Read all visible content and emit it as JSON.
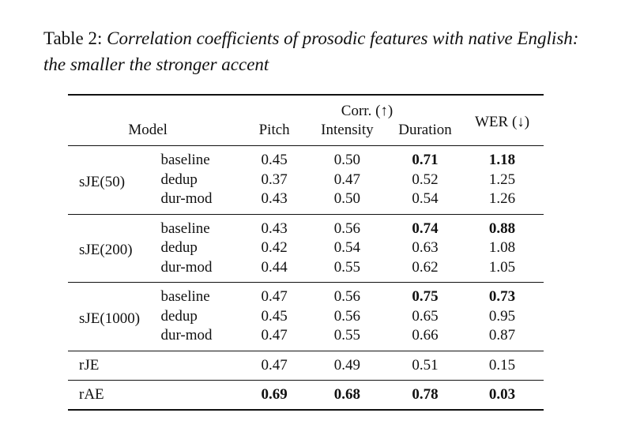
{
  "caption": {
    "label": "Table 2:",
    "text": "Correlation coefficients of prosodic features with native English: the smaller the stronger accent"
  },
  "header": {
    "model": "Model",
    "corr_group": "Corr. (↑)",
    "pitch": "Pitch",
    "intensity": "Intensity",
    "duration": "Duration",
    "wer": "WER (↓)"
  },
  "groups": [
    {
      "model": "sJE(50)",
      "rows": [
        {
          "variant": "baseline",
          "pitch": "0.45",
          "intensity": "0.50",
          "duration": "0.71",
          "wer": "1.18",
          "bold": [
            "duration",
            "wer"
          ]
        },
        {
          "variant": "dedup",
          "pitch": "0.37",
          "intensity": "0.47",
          "duration": "0.52",
          "wer": "1.25",
          "bold": []
        },
        {
          "variant": "dur-mod",
          "pitch": "0.43",
          "intensity": "0.50",
          "duration": "0.54",
          "wer": "1.26",
          "bold": []
        }
      ]
    },
    {
      "model": "sJE(200)",
      "rows": [
        {
          "variant": "baseline",
          "pitch": "0.43",
          "intensity": "0.56",
          "duration": "0.74",
          "wer": "0.88",
          "bold": [
            "duration",
            "wer"
          ]
        },
        {
          "variant": "dedup",
          "pitch": "0.42",
          "intensity": "0.54",
          "duration": "0.63",
          "wer": "1.08",
          "bold": []
        },
        {
          "variant": "dur-mod",
          "pitch": "0.44",
          "intensity": "0.55",
          "duration": "0.62",
          "wer": "1.05",
          "bold": []
        }
      ]
    },
    {
      "model": "sJE(1000)",
      "rows": [
        {
          "variant": "baseline",
          "pitch": "0.47",
          "intensity": "0.56",
          "duration": "0.75",
          "wer": "0.73",
          "bold": [
            "duration",
            "wer"
          ]
        },
        {
          "variant": "dedup",
          "pitch": "0.45",
          "intensity": "0.56",
          "duration": "0.65",
          "wer": "0.95",
          "bold": []
        },
        {
          "variant": "dur-mod",
          "pitch": "0.47",
          "intensity": "0.55",
          "duration": "0.66",
          "wer": "0.87",
          "bold": []
        }
      ]
    }
  ],
  "singles": [
    {
      "model": "rJE",
      "pitch": "0.47",
      "intensity": "0.49",
      "duration": "0.51",
      "wer": "0.15",
      "bold": []
    },
    {
      "model": "rAE",
      "pitch": "0.69",
      "intensity": "0.68",
      "duration": "0.78",
      "wer": "0.03",
      "bold": [
        "pitch",
        "intensity",
        "duration",
        "wer"
      ]
    }
  ]
}
